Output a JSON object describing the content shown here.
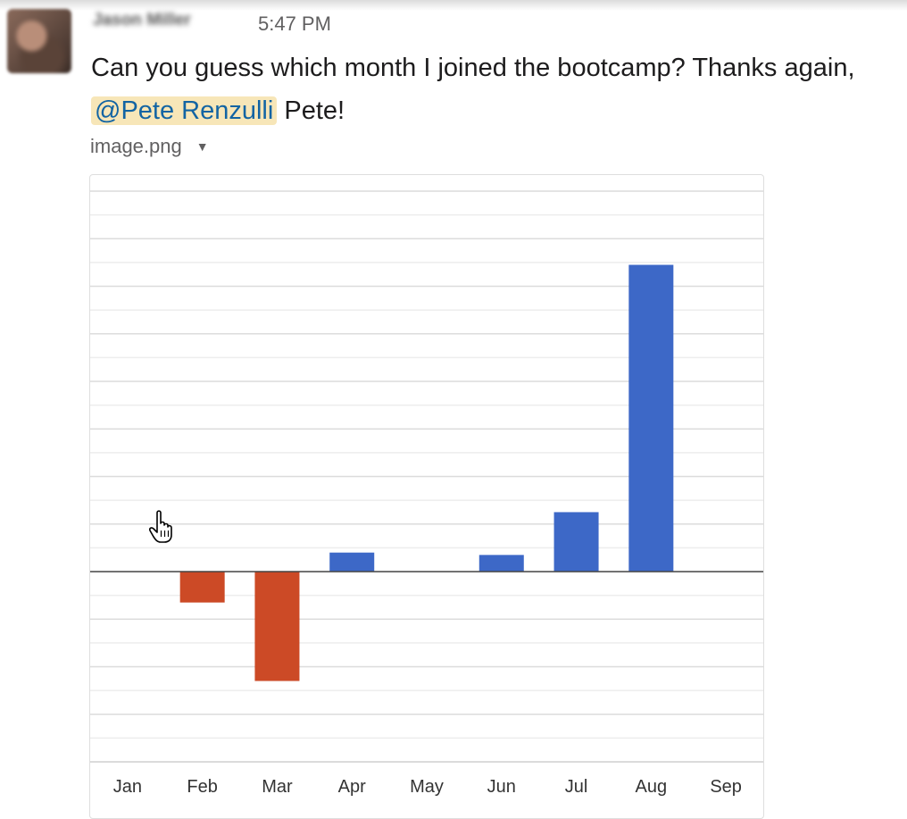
{
  "message": {
    "sender_name": "Jason Miller",
    "timestamp": "5:47 PM",
    "text_before": "Can you guess which month I joined the bootcamp? Thanks again,",
    "mention": "@Pete Renzulli",
    "text_after": "Pete!"
  },
  "attachment": {
    "filename": "image.png",
    "toggle_icon": "caret-down-icon"
  },
  "chart_data": {
    "type": "bar",
    "categories": [
      "Jan",
      "Feb",
      "Mar",
      "Apr",
      "May",
      "Jun",
      "Jul",
      "Aug",
      "Sep"
    ],
    "values": [
      0,
      -0.65,
      -2.3,
      0.4,
      0,
      0.35,
      1.25,
      6.45,
      0
    ],
    "ylim": [
      -4,
      8
    ],
    "grid": true,
    "colors": {
      "positive": "#3d68c7",
      "negative": "#cc4a26"
    }
  }
}
